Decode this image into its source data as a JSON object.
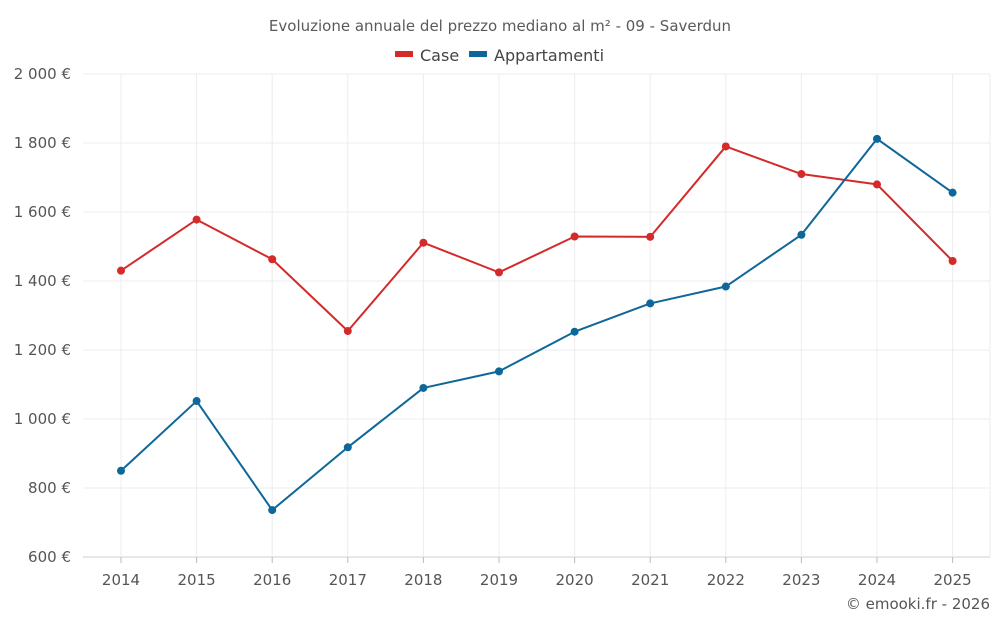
{
  "chart_data": {
    "type": "line",
    "title": "Evoluzione annuale del prezzo mediano al m² - 09 - Saverdun",
    "categories": [
      "2014",
      "2015",
      "2016",
      "2017",
      "2018",
      "2019",
      "2020",
      "2021",
      "2022",
      "2023",
      "2024",
      "2025"
    ],
    "series": [
      {
        "name": "Case",
        "color": "#d42a2a",
        "values": [
          1430,
          1578,
          1463,
          1255,
          1511,
          1425,
          1529,
          1528,
          1790,
          1710,
          1680,
          1458
        ]
      },
      {
        "name": "Appartamenti",
        "color": "#0e6799",
        "values": [
          850,
          1052,
          736,
          918,
          1090,
          1138,
          1253,
          1335,
          1384,
          1534,
          1812,
          1656
        ]
      }
    ],
    "ylim": [
      600,
      2000
    ],
    "yticks": [
      600,
      800,
      1000,
      1200,
      1400,
      1600,
      1800,
      2000
    ],
    "ytick_labels": [
      "600 €",
      "800 €",
      "1 000 €",
      "1 200 €",
      "1 400 €",
      "1 600 €",
      "1 800 €",
      "2 000 €"
    ],
    "grid": true,
    "legend": "top-center",
    "xlabel": "",
    "ylabel": ""
  },
  "footer": "© emooki.fr - 2026"
}
